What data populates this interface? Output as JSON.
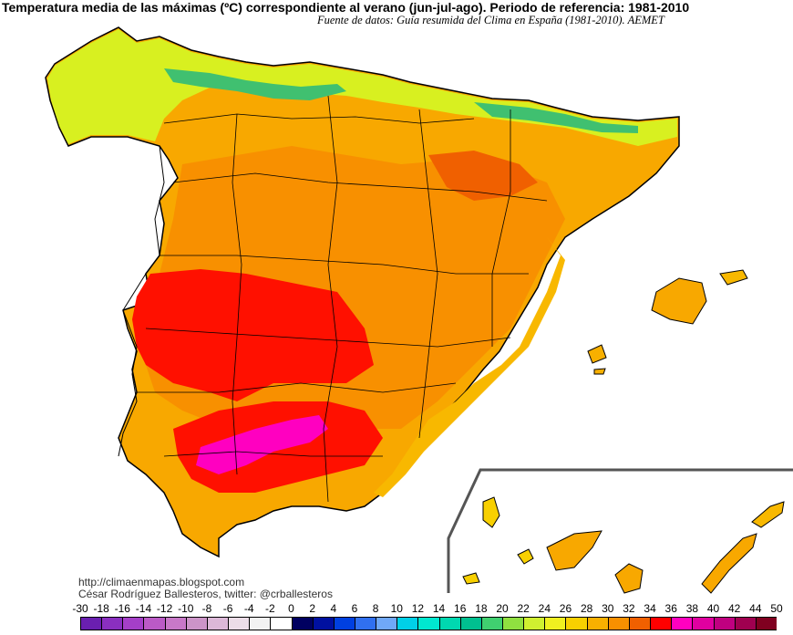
{
  "title": "Temperatura media de las máximas (ºC) correspondiente al verano (jun-jul-ago). Periodo de referencia: 1981-2010",
  "subtitle": "Fuente de datos: Guía resumida del Clima en España (1981-2010). AEMET",
  "credits": {
    "blog": "http://climaenmapas.blogspot.com",
    "author": "César Rodríguez Ballesteros, twitter: @crballesteros"
  },
  "legend": {
    "ticks": [
      "-30",
      "-18",
      "-16",
      "-14",
      "-12",
      "-10",
      "-8",
      "-6",
      "-4",
      "-2",
      "0",
      "2",
      "4",
      "6",
      "8",
      "10",
      "12",
      "14",
      "16",
      "18",
      "20",
      "22",
      "24",
      "26",
      "28",
      "30",
      "32",
      "34",
      "36",
      "38",
      "40",
      "42",
      "44",
      "50"
    ],
    "colors": [
      "#6a1fb0",
      "#8a2fc0",
      "#a53fc8",
      "#bb5ac6",
      "#c878c8",
      "#cc94c8",
      "#dcb8d8",
      "#ecdde8",
      "#f2f2f2",
      "#ffffff",
      "#000060",
      "#0010a0",
      "#0040e0",
      "#3070f0",
      "#70a8f8",
      "#00d0e8",
      "#00e8d0",
      "#00d8b0",
      "#00c090",
      "#40d070",
      "#90e040",
      "#d0f030",
      "#f0f020",
      "#f8d000",
      "#f8b000",
      "#f89000",
      "#f06000",
      "#ff0000",
      "#ff00c0",
      "#e000a0",
      "#c00080",
      "#a00050",
      "#800020"
    ]
  }
}
